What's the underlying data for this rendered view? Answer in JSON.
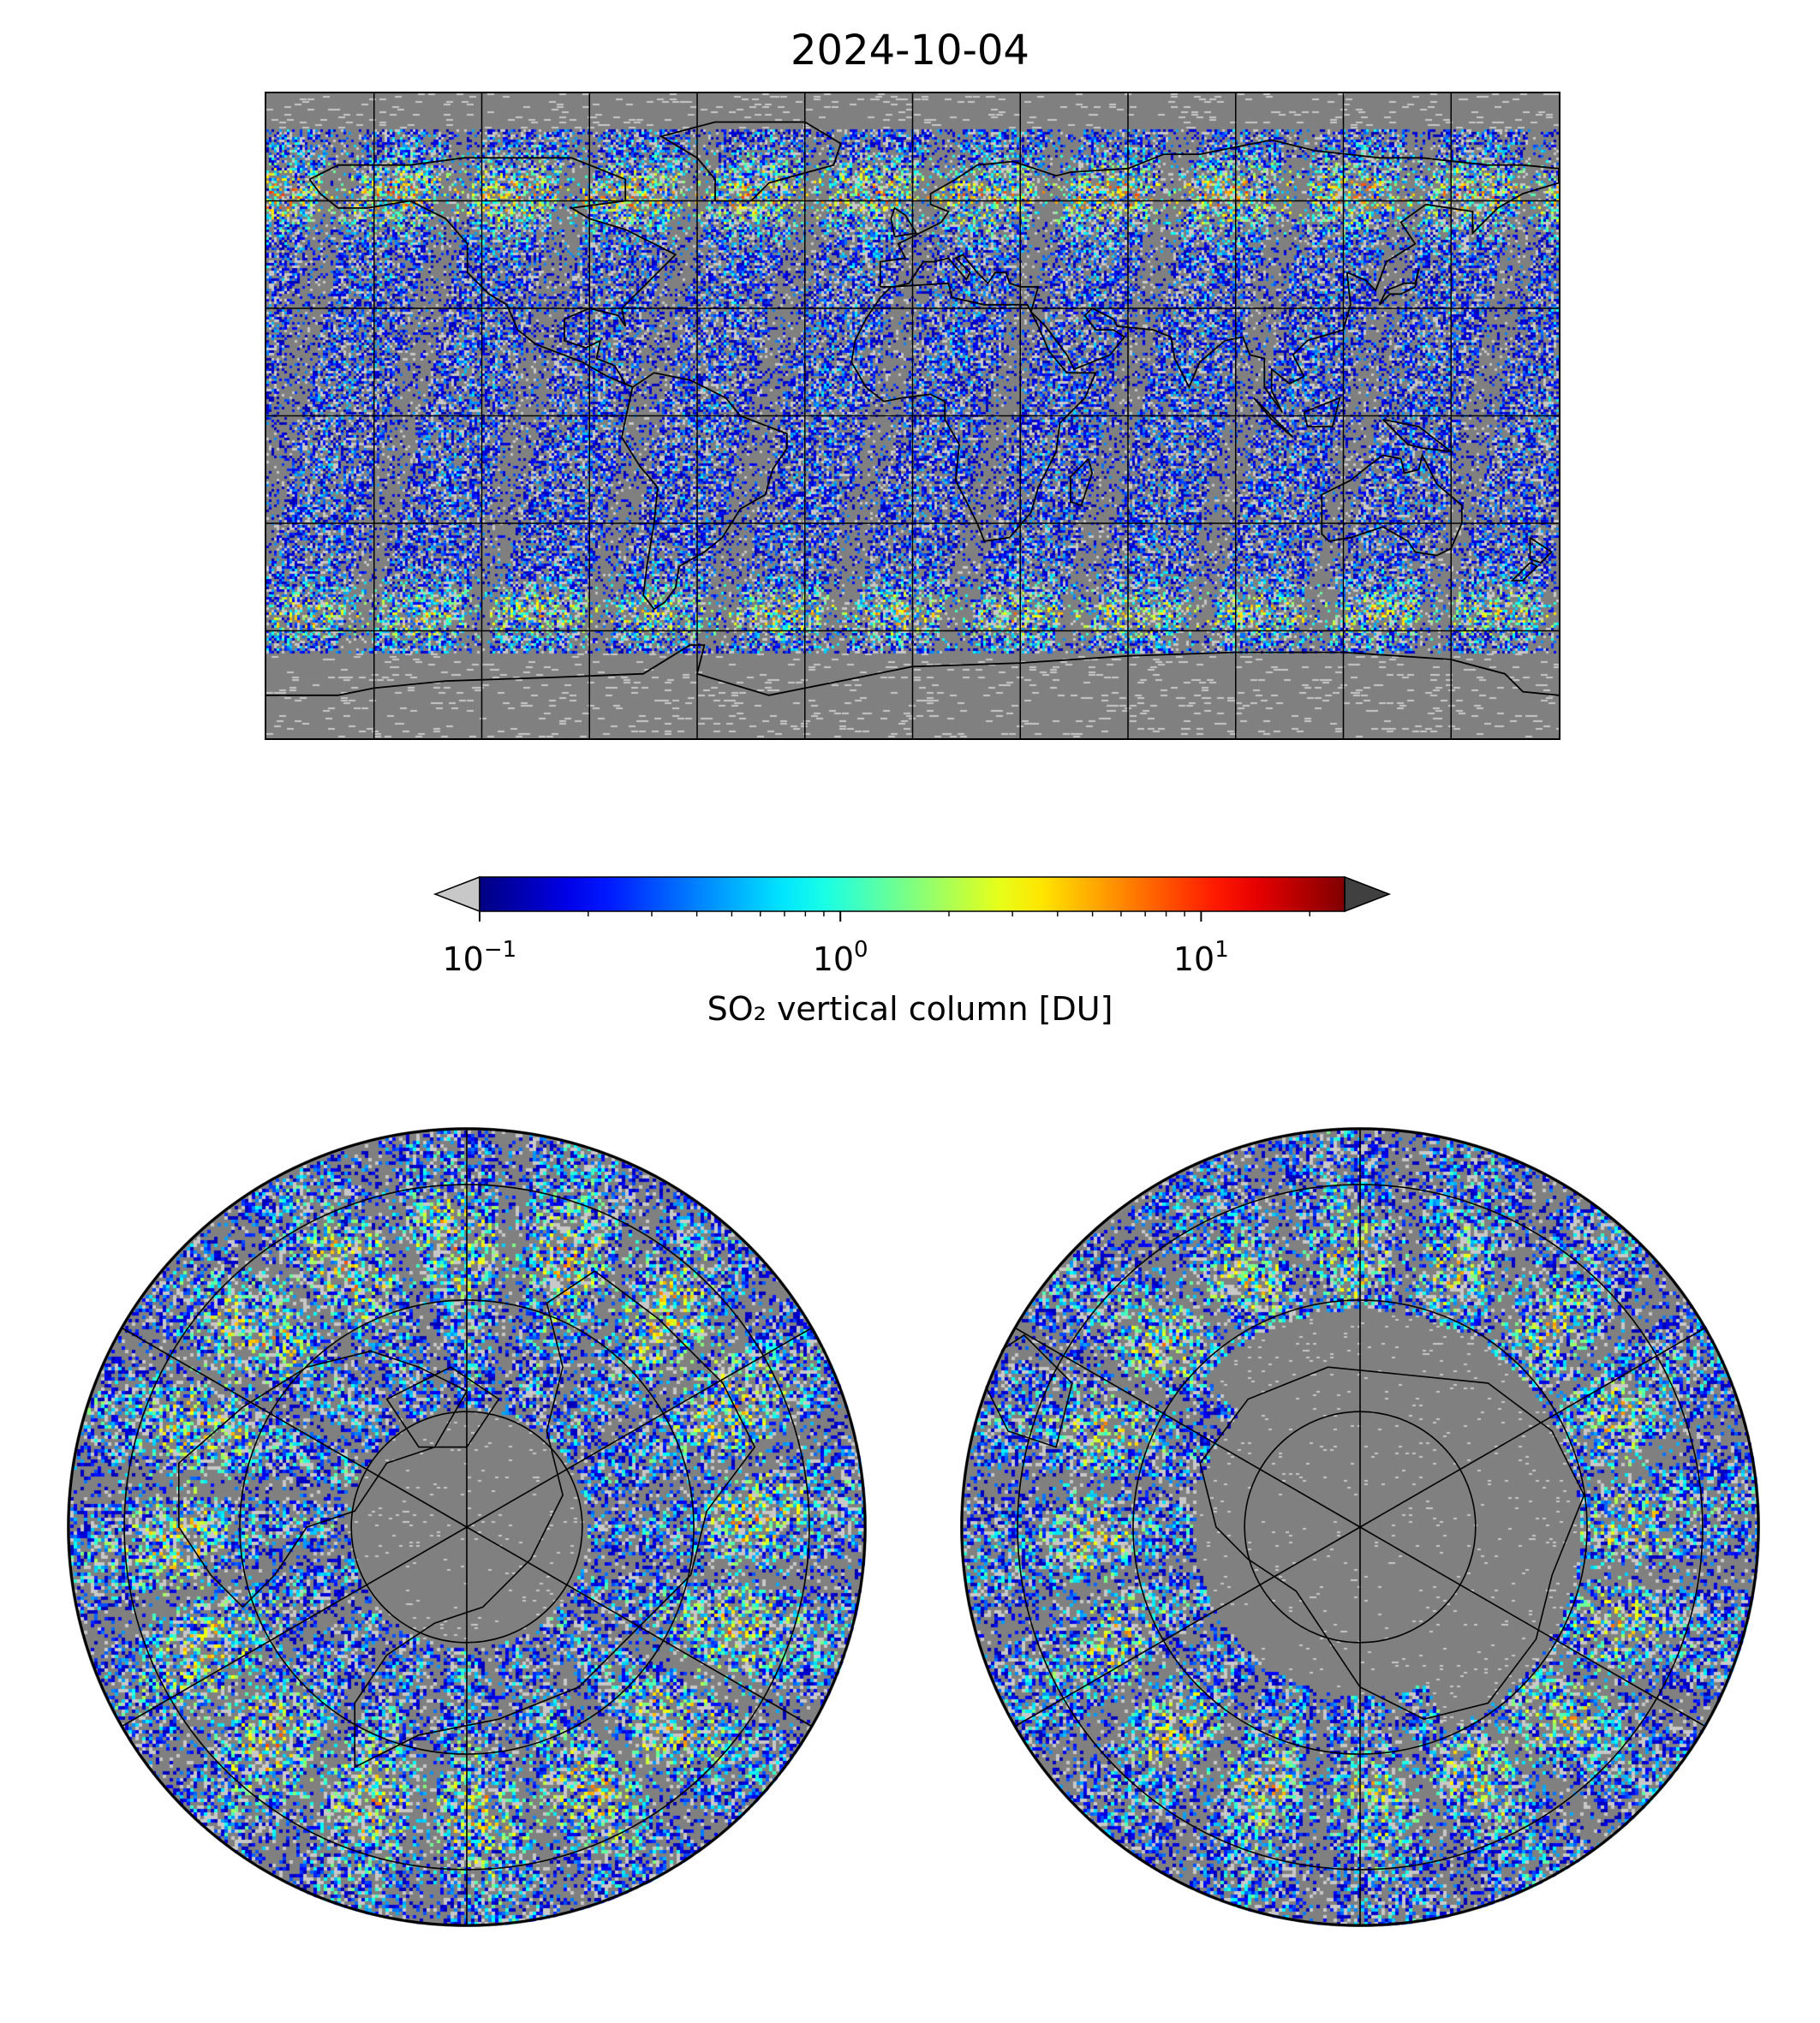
{
  "title": "2024-10-04",
  "colorbar": {
    "label": "SO₂ vertical column [DU]",
    "scale": "log",
    "range": [
      0.1,
      25
    ],
    "extend": "both",
    "under_color": "#c8c8c8",
    "over_color": "#404040",
    "colormap": "jet",
    "ticks": [
      {
        "value": 0.1,
        "base": "10",
        "exp": "−1"
      },
      {
        "value": 1,
        "base": "10",
        "exp": "0"
      },
      {
        "value": 10,
        "base": "10",
        "exp": "1"
      }
    ]
  },
  "maps": [
    {
      "name": "global",
      "projection": "plate-carree",
      "gridlines": true,
      "coastlines": true
    },
    {
      "name": "north-polar",
      "projection": "north-polar-stereographic",
      "gridlines": true,
      "coastlines": true
    },
    {
      "name": "south-polar",
      "projection": "south-polar-stereographic",
      "gridlines": true,
      "coastlines": true
    }
  ],
  "colors": {
    "background": "#808080",
    "nodata_light": "#c8c8c8",
    "grid": "#000000"
  }
}
